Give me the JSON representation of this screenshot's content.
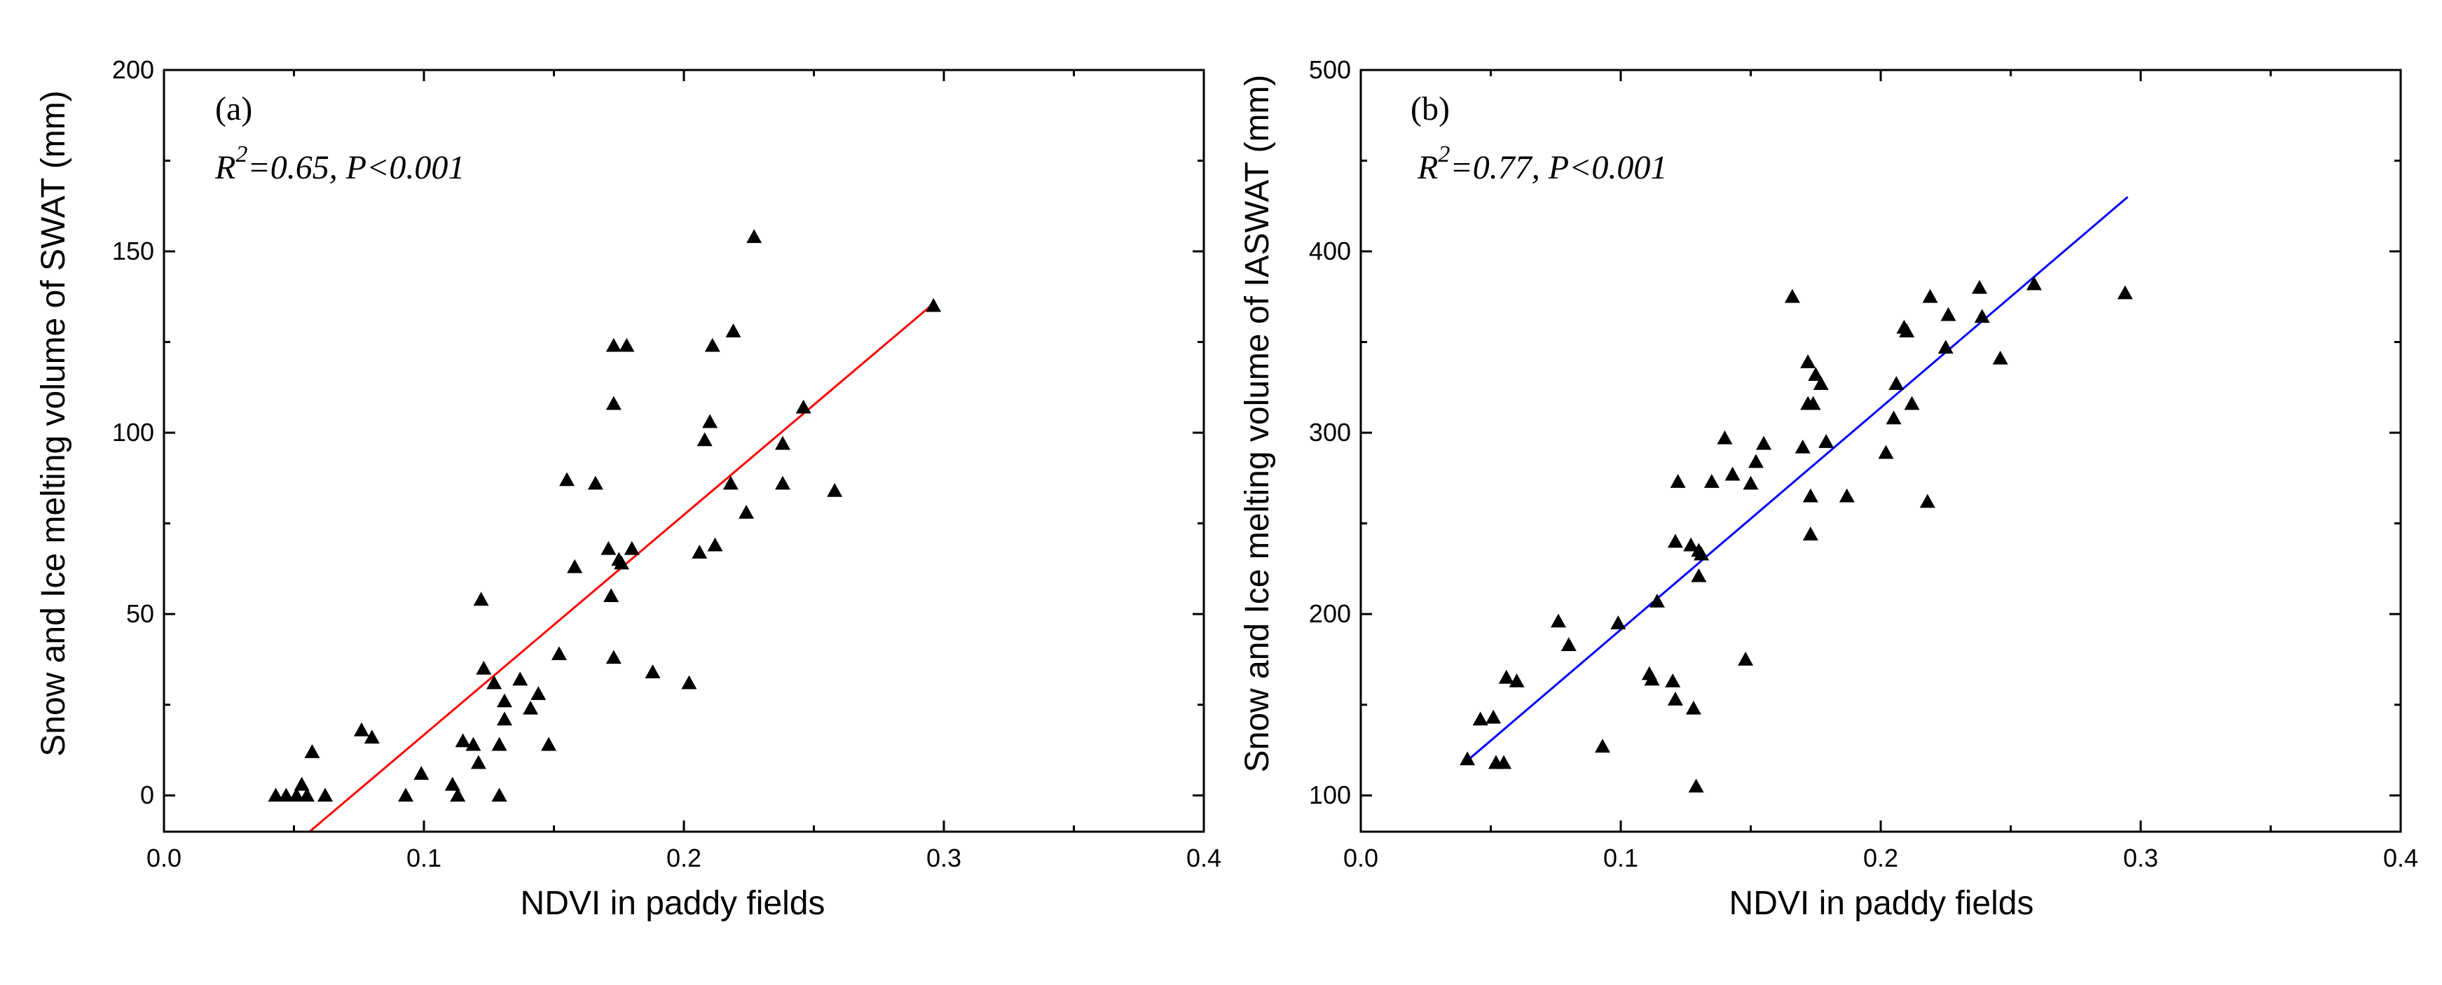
{
  "chart_data": [
    {
      "type": "scatter",
      "panel_label": "(a)",
      "stat_r": "R",
      "stat_exp": "2",
      "stat_rest": "=0.65, P<0.001",
      "xlabel": "NDVI in paddy fields",
      "ylabel": "Snow and Ice melting volume of SWAT (mm)",
      "xlim": [
        0.0,
        0.4
      ],
      "ylim": [
        -10,
        200
      ],
      "xticks": [
        "0.0",
        "0.1",
        "0.2",
        "0.3",
        "0.4"
      ],
      "yticks": [
        "0",
        "50",
        "100",
        "150",
        "200"
      ],
      "marker_color": "#000000",
      "fit_color": "#ff0000",
      "fit_line": [
        [
          0.056,
          -10
        ],
        [
          0.295,
          135
        ]
      ],
      "points": [
        [
          0.043,
          0
        ],
        [
          0.047,
          0
        ],
        [
          0.051,
          0
        ],
        [
          0.053,
          3
        ],
        [
          0.055,
          0
        ],
        [
          0.057,
          12
        ],
        [
          0.062,
          0
        ],
        [
          0.076,
          18
        ],
        [
          0.08,
          16
        ],
        [
          0.093,
          0
        ],
        [
          0.099,
          6
        ],
        [
          0.111,
          3
        ],
        [
          0.113,
          0
        ],
        [
          0.115,
          15
        ],
        [
          0.119,
          14
        ],
        [
          0.121,
          9
        ],
        [
          0.122,
          54
        ],
        [
          0.123,
          35
        ],
        [
          0.127,
          31
        ],
        [
          0.129,
          14
        ],
        [
          0.129,
          0
        ],
        [
          0.131,
          21
        ],
        [
          0.131,
          26
        ],
        [
          0.137,
          32
        ],
        [
          0.141,
          24
        ],
        [
          0.144,
          28
        ],
        [
          0.148,
          14
        ],
        [
          0.152,
          39
        ],
        [
          0.155,
          87
        ],
        [
          0.158,
          63
        ],
        [
          0.166,
          86
        ],
        [
          0.171,
          68
        ],
        [
          0.172,
          55
        ],
        [
          0.173,
          108
        ],
        [
          0.173,
          124
        ],
        [
          0.173,
          38
        ],
        [
          0.175,
          65
        ],
        [
          0.176,
          64
        ],
        [
          0.178,
          124
        ],
        [
          0.18,
          68
        ],
        [
          0.188,
          34
        ],
        [
          0.202,
          31
        ],
        [
          0.206,
          67
        ],
        [
          0.208,
          98
        ],
        [
          0.21,
          103
        ],
        [
          0.211,
          124
        ],
        [
          0.212,
          69
        ],
        [
          0.218,
          86
        ],
        [
          0.219,
          128
        ],
        [
          0.224,
          78
        ],
        [
          0.227,
          154
        ],
        [
          0.238,
          86
        ],
        [
          0.238,
          97
        ],
        [
          0.246,
          107
        ],
        [
          0.258,
          84
        ],
        [
          0.296,
          135
        ]
      ]
    },
    {
      "type": "scatter",
      "panel_label": "(b)",
      "stat_r": "R",
      "stat_exp": "2",
      "stat_rest": "=0.77, P<0.001",
      "xlabel": "NDVI in paddy fields",
      "ylabel": "Snow and Ice melting volume of IASWAT (mm)",
      "xlim": [
        0.0,
        0.4
      ],
      "ylim": [
        80,
        500
      ],
      "xticks": [
        "0.0",
        "0.1",
        "0.2",
        "0.3",
        "0.4"
      ],
      "yticks": [
        "100",
        "200",
        "300",
        "400",
        "500"
      ],
      "marker_color": "#000000",
      "fit_color": "#0000ff",
      "fit_line": [
        [
          0.04,
          118
        ],
        [
          0.295,
          430
        ]
      ],
      "points": [
        [
          0.041,
          120
        ],
        [
          0.046,
          142
        ],
        [
          0.051,
          143
        ],
        [
          0.052,
          118
        ],
        [
          0.055,
          118
        ],
        [
          0.056,
          165
        ],
        [
          0.06,
          163
        ],
        [
          0.076,
          196
        ],
        [
          0.08,
          183
        ],
        [
          0.093,
          127
        ],
        [
          0.099,
          195
        ],
        [
          0.111,
          167
        ],
        [
          0.112,
          164
        ],
        [
          0.114,
          207
        ],
        [
          0.12,
          163
        ],
        [
          0.121,
          153
        ],
        [
          0.121,
          240
        ],
        [
          0.122,
          273
        ],
        [
          0.127,
          238
        ],
        [
          0.128,
          148
        ],
        [
          0.129,
          105
        ],
        [
          0.13,
          221
        ],
        [
          0.13,
          235
        ],
        [
          0.131,
          233
        ],
        [
          0.135,
          273
        ],
        [
          0.14,
          297
        ],
        [
          0.143,
          277
        ],
        [
          0.148,
          175
        ],
        [
          0.15,
          272
        ],
        [
          0.152,
          284
        ],
        [
          0.155,
          294
        ],
        [
          0.166,
          375
        ],
        [
          0.17,
          292
        ],
        [
          0.172,
          316
        ],
        [
          0.172,
          339
        ],
        [
          0.173,
          265
        ],
        [
          0.173,
          244
        ],
        [
          0.174,
          316
        ],
        [
          0.175,
          332
        ],
        [
          0.177,
          327
        ],
        [
          0.179,
          295
        ],
        [
          0.187,
          265
        ],
        [
          0.202,
          289
        ],
        [
          0.205,
          308
        ],
        [
          0.206,
          327
        ],
        [
          0.209,
          358
        ],
        [
          0.21,
          356
        ],
        [
          0.212,
          316
        ],
        [
          0.218,
          262
        ],
        [
          0.219,
          375
        ],
        [
          0.225,
          347
        ],
        [
          0.226,
          365
        ],
        [
          0.238,
          380
        ],
        [
          0.239,
          364
        ],
        [
          0.246,
          341
        ],
        [
          0.259,
          382
        ],
        [
          0.294,
          377
        ]
      ]
    }
  ]
}
